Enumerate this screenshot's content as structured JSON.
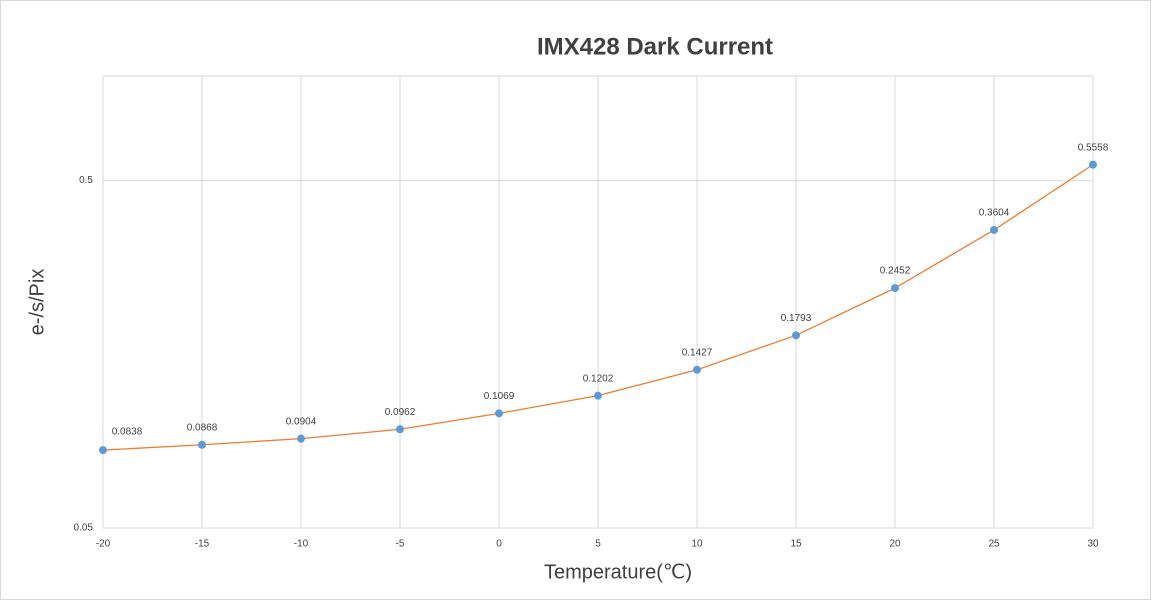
{
  "chart_data": {
    "type": "line",
    "title": "IMX428 Dark Current",
    "x_label": "Temperature(℃)",
    "y_label": "e-/s/Pix",
    "x": [
      -20,
      -15,
      -10,
      -5,
      0,
      5,
      10,
      15,
      20,
      25,
      30
    ],
    "series": [
      {
        "name": "IMX428",
        "color": "#ed7d31",
        "marker_color": "#5b9bd5",
        "values": [
          0.0838,
          0.0868,
          0.0904,
          0.0962,
          0.1069,
          0.1202,
          0.1427,
          0.1793,
          0.2452,
          0.3604,
          0.5558
        ]
      }
    ],
    "xlim": [
      -20,
      30
    ],
    "xticks": [
      -20,
      -15,
      -10,
      -5,
      0,
      5,
      10,
      15,
      20,
      25,
      30
    ],
    "ylim": [
      0.05,
      1
    ],
    "yticks": [
      0.05,
      0.5
    ],
    "ylog": true,
    "grid": true
  }
}
